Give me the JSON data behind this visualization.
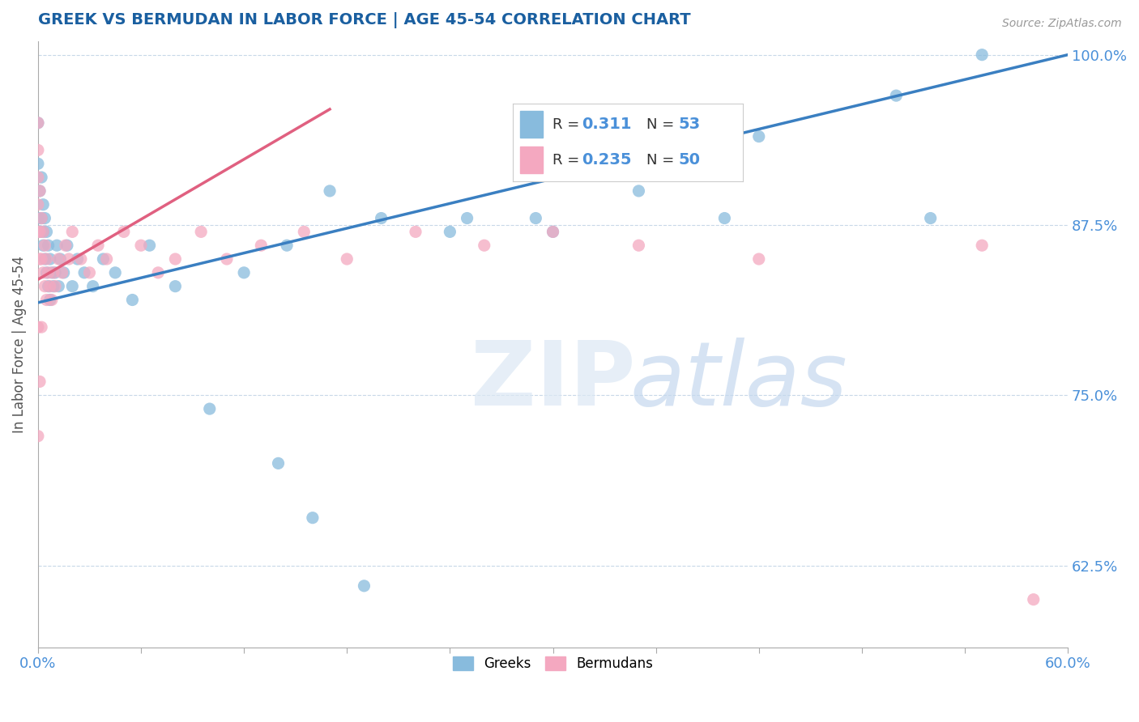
{
  "title": "GREEK VS BERMUDAN IN LABOR FORCE | AGE 45-54 CORRELATION CHART",
  "source": "Source: ZipAtlas.com",
  "ylabel": "In Labor Force | Age 45-54",
  "xlim": [
    0.0,
    0.6
  ],
  "ylim": [
    0.565,
    1.01
  ],
  "xticks": [
    0.0,
    0.06,
    0.12,
    0.18,
    0.24,
    0.3,
    0.36,
    0.42,
    0.48,
    0.54,
    0.6
  ],
  "ytick_positions": [
    0.625,
    0.75,
    0.875,
    1.0
  ],
  "ytick_labels": [
    "62.5%",
    "75.0%",
    "87.5%",
    "100.0%"
  ],
  "blue_color": "#88bbdd",
  "pink_color": "#f4a8c0",
  "trend_blue": "#3a7fc1",
  "trend_pink": "#e06080",
  "title_color": "#1a5fa0",
  "axis_color": "#4a90d9",
  "grid_color": "#c8d8e8",
  "greek_x": [
    0.0,
    0.0,
    0.0,
    0.001,
    0.001,
    0.002,
    0.002,
    0.003,
    0.003,
    0.003,
    0.004,
    0.004,
    0.005,
    0.005,
    0.006,
    0.006,
    0.007,
    0.007,
    0.008,
    0.009,
    0.01,
    0.011,
    0.012,
    0.013,
    0.015,
    0.017,
    0.02,
    0.023,
    0.027,
    0.032,
    0.038,
    0.045,
    0.055,
    0.065,
    0.08,
    0.1,
    0.12,
    0.145,
    0.17,
    0.2,
    0.24,
    0.29,
    0.35,
    0.42,
    0.5,
    0.55,
    0.14,
    0.16,
    0.19,
    0.25,
    0.3,
    0.4,
    0.52
  ],
  "greek_y": [
    0.95,
    0.92,
    0.88,
    0.9,
    0.87,
    0.91,
    0.88,
    0.89,
    0.87,
    0.86,
    0.88,
    0.85,
    0.87,
    0.84,
    0.86,
    0.83,
    0.85,
    0.82,
    0.84,
    0.83,
    0.84,
    0.86,
    0.83,
    0.85,
    0.84,
    0.86,
    0.83,
    0.85,
    0.84,
    0.83,
    0.85,
    0.84,
    0.82,
    0.86,
    0.83,
    0.74,
    0.84,
    0.86,
    0.9,
    0.88,
    0.87,
    0.88,
    0.9,
    0.94,
    0.97,
    1.0,
    0.7,
    0.66,
    0.61,
    0.88,
    0.87,
    0.88,
    0.88
  ],
  "bermudan_x": [
    0.0,
    0.0,
    0.0,
    0.0,
    0.0,
    0.001,
    0.001,
    0.001,
    0.002,
    0.002,
    0.003,
    0.003,
    0.004,
    0.004,
    0.005,
    0.005,
    0.006,
    0.007,
    0.008,
    0.009,
    0.01,
    0.012,
    0.014,
    0.016,
    0.018,
    0.02,
    0.025,
    0.03,
    0.035,
    0.04,
    0.05,
    0.06,
    0.07,
    0.08,
    0.095,
    0.11,
    0.13,
    0.155,
    0.18,
    0.22,
    0.26,
    0.3,
    0.35,
    0.42,
    0.55,
    0.0,
    0.0,
    0.001,
    0.002,
    0.58
  ],
  "bermudan_y": [
    0.95,
    0.93,
    0.91,
    0.89,
    0.87,
    0.9,
    0.87,
    0.85,
    0.88,
    0.85,
    0.87,
    0.84,
    0.86,
    0.83,
    0.85,
    0.82,
    0.84,
    0.83,
    0.82,
    0.84,
    0.83,
    0.85,
    0.84,
    0.86,
    0.85,
    0.87,
    0.85,
    0.84,
    0.86,
    0.85,
    0.87,
    0.86,
    0.84,
    0.85,
    0.87,
    0.85,
    0.86,
    0.87,
    0.85,
    0.87,
    0.86,
    0.87,
    0.86,
    0.85,
    0.86,
    0.8,
    0.72,
    0.76,
    0.8,
    0.6
  ],
  "trend_blue_x0": 0.0,
  "trend_blue_y0": 0.818,
  "trend_blue_x1": 0.6,
  "trend_blue_y1": 1.0,
  "trend_pink_x0": 0.0,
  "trend_pink_y0": 0.835,
  "trend_pink_x1": 0.17,
  "trend_pink_y1": 0.96
}
